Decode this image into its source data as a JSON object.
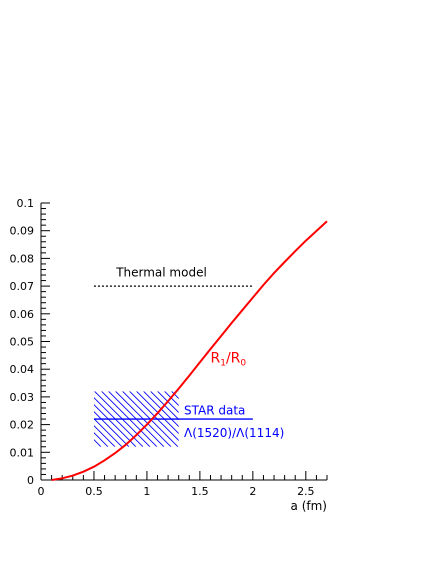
{
  "chart_data": {
    "type": "line",
    "xlabel": "a (fm)",
    "ylabel": "",
    "xlim": [
      0,
      2.7
    ],
    "ylim": [
      0,
      0.1
    ],
    "grid": false,
    "x_ticks": [
      "0",
      "0.5",
      "1",
      "1.5",
      "2",
      "2.5"
    ],
    "x_tick_values": [
      0,
      0.5,
      1,
      1.5,
      2,
      2.5
    ],
    "y_ticks": [
      "0",
      "0.01",
      "0.02",
      "0.03",
      "0.04",
      "0.05",
      "0.06",
      "0.07",
      "0.08",
      "0.09",
      "0.1"
    ],
    "y_tick_values": [
      0,
      0.01,
      0.02,
      0.03,
      0.04,
      0.05,
      0.06,
      0.07,
      0.08,
      0.09,
      0.1
    ],
    "series": [
      {
        "name": "R1/R0",
        "color": "#ff0000",
        "x": [
          0.1,
          0.2,
          0.3,
          0.4,
          0.5,
          0.6,
          0.7,
          0.8,
          0.9,
          1.0,
          1.1,
          1.2,
          1.3,
          1.4,
          1.5,
          1.6,
          1.7,
          1.8,
          1.9,
          2.0,
          2.1,
          2.2,
          2.3,
          2.4,
          2.5,
          2.6,
          2.7
        ],
        "y": [
          0.0,
          0.0006,
          0.0016,
          0.003,
          0.0048,
          0.0071,
          0.0097,
          0.0127,
          0.0162,
          0.02,
          0.0241,
          0.0285,
          0.033,
          0.0377,
          0.0425,
          0.0473,
          0.052,
          0.0567,
          0.0613,
          0.0659,
          0.0704,
          0.0747,
          0.0787,
          0.0826,
          0.0864,
          0.0899,
          0.0934
        ]
      }
    ],
    "thermal_model": {
      "label": "Thermal model",
      "x": [
        0.5,
        2.0
      ],
      "y": 0.07,
      "color": "#000000",
      "style": "dotted"
    },
    "star_data": {
      "label": "STAR data",
      "label2": "Λ(1520)/Λ(1114)",
      "x": [
        0.5,
        2.0
      ],
      "y": 0.022,
      "color": "#0000ff",
      "band_x": [
        0.5,
        1.3
      ],
      "band_y": [
        0.012,
        0.032
      ]
    },
    "curve_label": {
      "main": "R",
      "sub1": "1",
      "sep": "/R",
      "sub2": "0"
    }
  }
}
